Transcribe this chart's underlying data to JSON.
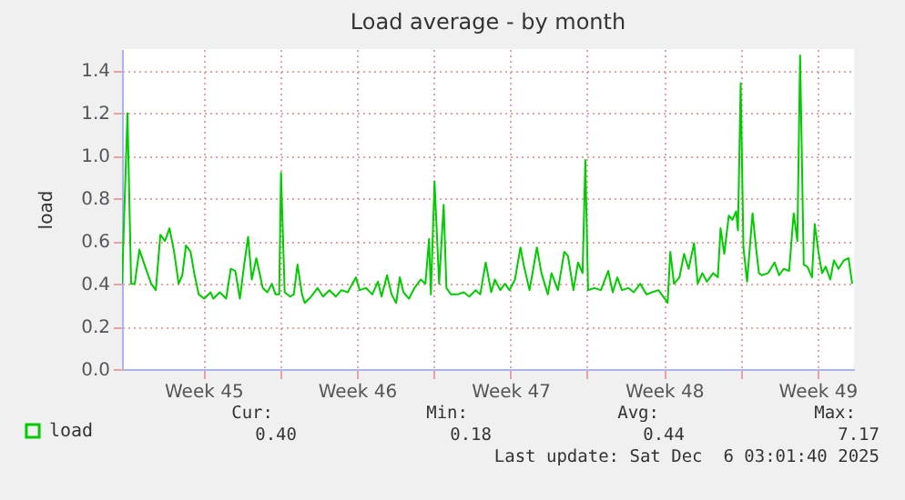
{
  "chart_data": {
    "type": "line",
    "title": "Load average - by month",
    "ylabel": "load",
    "xlim": [
      "2025-11-02T19:00",
      "2025-12-06T04:00"
    ],
    "ylim": [
      0,
      1.5
    ],
    "xticks": [
      {
        "value": "2025-11-06T12:00",
        "label": "Week 45"
      },
      {
        "value": "2025-11-13T12:00",
        "label": "Week 46"
      },
      {
        "value": "2025-11-20T12:00",
        "label": "Week 47"
      },
      {
        "value": "2025-11-27T12:00",
        "label": "Week 48"
      },
      {
        "value": "2025-12-04T12:00",
        "label": "Week 49"
      },
      {
        "value": "2025-11-10T00:00",
        "label": null
      },
      {
        "value": "2025-11-17T00:00",
        "label": null
      },
      {
        "value": "2025-11-24T00:00",
        "label": null
      },
      {
        "value": "2025-12-01T00:00",
        "label": null
      }
    ],
    "yticks": [
      {
        "value": 0,
        "label": "0.0"
      },
      0.2,
      0.4,
      0.6,
      0.8,
      {
        "value": 1,
        "label": "1.0"
      },
      1.2,
      1.4
    ],
    "grid": true,
    "legend": "bottom",
    "x": [
      "2025-11-02T19:00",
      "2025-11-03T01:00",
      "2025-11-03T05:00",
      "2025-11-03T09:00",
      "2025-11-03T14:00",
      "2025-11-03T22:00",
      "2025-11-04T03:00",
      "2025-11-04T08:00",
      "2025-11-04T13:00",
      "2025-11-04T18:00",
      "2025-11-04T23:00",
      "2025-11-05T04:00",
      "2025-11-05T09:00",
      "2025-11-05T13:00",
      "2025-11-05T17:00",
      "2025-11-05T22:00",
      "2025-11-06T02:00",
      "2025-11-06T07:00",
      "2025-11-06T13:00",
      "2025-11-06T20:00",
      "2025-11-06T23:00",
      "2025-11-07T06:00",
      "2025-11-07T13:00",
      "2025-11-07T18:00",
      "2025-11-07T23:00",
      "2025-11-08T04:00",
      "2025-11-08T09:00",
      "2025-11-08T13:00",
      "2025-11-08T17:00",
      "2025-11-08T22:00",
      "2025-11-09T05:00",
      "2025-11-09T10:00",
      "2025-11-09T15:00",
      "2025-11-09T19:00",
      "2025-11-09T23:00",
      "2025-11-10T01:00",
      "2025-11-10T05:00",
      "2025-11-10T11:00",
      "2025-11-10T15:00",
      "2025-11-10T19:00",
      "2025-11-11T00:00",
      "2025-11-11T03:00",
      "2025-11-11T10:00",
      "2025-11-11T17:00",
      "2025-11-11T23:00",
      "2025-11-12T06:00",
      "2025-11-12T13:00",
      "2025-11-12T19:00",
      "2025-11-13T02:00",
      "2025-11-13T07:00",
      "2025-11-13T11:00",
      "2025-11-13T15:00",
      "2025-11-13T22:00",
      "2025-11-14T05:00",
      "2025-11-14T11:00",
      "2025-11-14T15:00",
      "2025-11-14T21:00",
      "2025-11-15T02:00",
      "2025-11-15T07:00",
      "2025-11-15T11:00",
      "2025-11-15T15:00",
      "2025-11-15T21:00",
      "2025-11-16T03:00",
      "2025-11-16T10:00",
      "2025-11-16T15:00",
      "2025-11-16T19:00",
      "2025-11-16T21:00",
      "2025-11-17T01:00",
      "2025-11-17T06:00",
      "2025-11-17T11:00",
      "2025-11-17T14:00",
      "2025-11-17T19:00",
      "2025-11-18T02:00",
      "2025-11-18T09:00",
      "2025-11-18T15:00",
      "2025-11-18T22:00",
      "2025-11-19T03:00",
      "2025-11-19T09:00",
      "2025-11-19T15:00",
      "2025-11-19T19:00",
      "2025-11-20T01:00",
      "2025-11-20T06:00",
      "2025-11-20T11:00",
      "2025-11-20T17:00",
      "2025-11-20T23:00",
      "2025-11-21T03:00",
      "2025-11-21T09:00",
      "2025-11-21T17:00",
      "2025-11-21T22:00",
      "2025-11-22T05:00",
      "2025-11-22T09:00",
      "2025-11-22T16:00",
      "2025-11-22T23:00",
      "2025-11-23T03:00",
      "2025-11-23T09:00",
      "2025-11-23T14:00",
      "2025-11-23T19:00",
      "2025-11-23T22:00",
      "2025-11-24T01:00",
      "2025-11-24T08:00",
      "2025-11-24T15:00",
      "2025-11-24T23:00",
      "2025-11-25T04:00",
      "2025-11-25T09:00",
      "2025-11-25T14:00",
      "2025-11-25T21:00",
      "2025-11-26T03:00",
      "2025-11-26T10:00",
      "2025-11-26T17:00",
      "2025-11-26T23:00",
      "2025-11-27T06:00",
      "2025-11-27T13:00",
      "2025-11-27T16:00",
      "2025-11-27T19:00",
      "2025-11-27T23:00",
      "2025-11-28T05:00",
      "2025-11-28T10:00",
      "2025-11-28T15:00",
      "2025-11-28T21:00",
      "2025-11-29T01:00",
      "2025-11-29T06:00",
      "2025-11-29T11:00",
      "2025-11-29T18:00",
      "2025-11-29T23:00",
      "2025-11-30T02:00",
      "2025-11-30T06:00",
      "2025-11-30T11:00",
      "2025-11-30T15:00",
      "2025-11-30T19:00",
      "2025-11-30T21:00",
      "2025-12-01T00:00",
      "2025-12-01T03:00",
      "2025-12-01T07:00",
      "2025-12-01T13:00",
      "2025-12-01T17:00",
      "2025-12-01T20:00",
      "2025-12-01T23:00",
      "2025-12-02T06:00",
      "2025-12-02T13:00",
      "2025-12-02T18:00",
      "2025-12-02T23:00",
      "2025-12-03T05:00",
      "2025-12-03T10:00",
      "2025-12-03T14:00",
      "2025-12-03T17:00",
      "2025-12-03T21:00",
      "2025-12-04T01:00",
      "2025-12-04T06:00",
      "2025-12-04T09:00",
      "2025-12-04T13:00",
      "2025-12-04T17:00",
      "2025-12-04T21:00",
      "2025-12-05T02:00",
      "2025-12-05T06:00",
      "2025-12-05T11:00",
      "2025-12-05T17:00",
      "2025-12-05T22:00",
      "2025-12-06T02:00"
    ],
    "series": [
      {
        "name": "load",
        "color": "#00cc00",
        "values": [
          0.4,
          1.2,
          0.4,
          0.4,
          0.56,
          0.46,
          0.4,
          0.37,
          0.63,
          0.6,
          0.66,
          0.55,
          0.4,
          0.44,
          0.58,
          0.55,
          0.45,
          0.35,
          0.33,
          0.36,
          0.33,
          0.36,
          0.33,
          0.47,
          0.46,
          0.33,
          0.5,
          0.62,
          0.42,
          0.52,
          0.38,
          0.36,
          0.4,
          0.35,
          0.35,
          0.92,
          0.36,
          0.34,
          0.35,
          0.49,
          0.35,
          0.31,
          0.34,
          0.38,
          0.34,
          0.37,
          0.34,
          0.37,
          0.36,
          0.4,
          0.43,
          0.37,
          0.38,
          0.35,
          0.41,
          0.34,
          0.44,
          0.35,
          0.31,
          0.43,
          0.36,
          0.33,
          0.38,
          0.42,
          0.4,
          0.61,
          0.35,
          0.88,
          0.4,
          0.77,
          0.38,
          0.35,
          0.35,
          0.36,
          0.34,
          0.37,
          0.35,
          0.5,
          0.36,
          0.42,
          0.37,
          0.4,
          0.37,
          0.42,
          0.57,
          0.48,
          0.37,
          0.57,
          0.45,
          0.35,
          0.45,
          0.37,
          0.55,
          0.53,
          0.37,
          0.5,
          0.45,
          0.98,
          0.37,
          0.38,
          0.37,
          0.46,
          0.36,
          0.43,
          0.37,
          0.38,
          0.36,
          0.4,
          0.35,
          0.36,
          0.37,
          0.33,
          0.31,
          0.55,
          0.4,
          0.43,
          0.54,
          0.47,
          0.59,
          0.4,
          0.45,
          0.41,
          0.45,
          0.43,
          0.66,
          0.54,
          0.72,
          0.7,
          0.74,
          0.65,
          1.34,
          0.57,
          0.41,
          0.73,
          0.56,
          0.45,
          0.44,
          0.45,
          0.5,
          0.44,
          0.47,
          0.46,
          0.73,
          0.6,
          1.47,
          0.49,
          0.48,
          0.43,
          0.68,
          0.55,
          0.45,
          0.48,
          0.42,
          0.51,
          0.47,
          0.51,
          0.52,
          0.4
        ]
      }
    ],
    "annotations": [
      "Cur:",
      "Min:",
      "Avg:",
      "Max:",
      "0.40",
      "0.18",
      "0.44",
      "7.17",
      "Last update: Sat Dec  6 03:01:40 2025"
    ]
  }
}
